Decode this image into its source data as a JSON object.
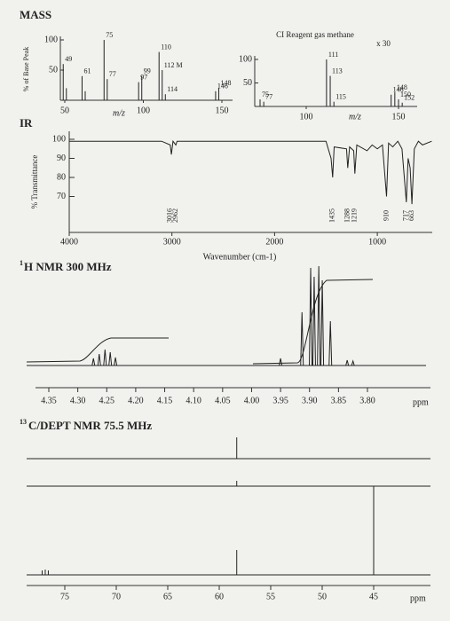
{
  "mass": {
    "title": "MASS",
    "ylabel": "% of Base Peak",
    "xlabel": "m/z",
    "yticks": [
      100,
      50
    ],
    "xticks": [
      50,
      100,
      150
    ],
    "peaks": [
      {
        "mz": 49,
        "intensity": 60,
        "label": "49"
      },
      {
        "mz": 51,
        "intensity": 20
      },
      {
        "mz": 61,
        "intensity": 40,
        "label": "61"
      },
      {
        "mz": 63,
        "intensity": 15
      },
      {
        "mz": 75,
        "intensity": 100,
        "label": "75"
      },
      {
        "mz": 77,
        "intensity": 35,
        "label": "77"
      },
      {
        "mz": 97,
        "intensity": 30,
        "label": "97"
      },
      {
        "mz": 99,
        "intensity": 40,
        "label": "99"
      },
      {
        "mz": 110,
        "intensity": 80,
        "label": "110"
      },
      {
        "mz": 112,
        "intensity": 50,
        "label": "112 M"
      },
      {
        "mz": 114,
        "intensity": 10,
        "label": "114"
      },
      {
        "mz": 146,
        "intensity": 15,
        "label": "146"
      },
      {
        "mz": 148,
        "intensity": 20,
        "label": "148"
      }
    ]
  },
  "ci": {
    "title": "CI Reagent gas methane",
    "scale_note": "x 30",
    "xlabel": "m/z",
    "yticks": [
      100,
      50
    ],
    "xticks": [
      100,
      150
    ],
    "peaks": [
      {
        "mz": 75,
        "intensity": 15,
        "label": "75"
      },
      {
        "mz": 77,
        "intensity": 10,
        "label": "77"
      },
      {
        "mz": 111,
        "intensity": 100,
        "label": "111"
      },
      {
        "mz": 113,
        "intensity": 65,
        "label": "113"
      },
      {
        "mz": 115,
        "intensity": 10,
        "label": "115"
      },
      {
        "mz": 146,
        "intensity": 25,
        "label": "146"
      },
      {
        "mz": 148,
        "intensity": 30,
        "label": "148"
      },
      {
        "mz": 150,
        "intensity": 15,
        "label": "150"
      },
      {
        "mz": 152,
        "intensity": 8,
        "label": "152"
      }
    ]
  },
  "ir": {
    "title": "IR",
    "ylabel": "% Transmittance",
    "xlabel": "Wavenumber (cm-1)",
    "yticks": [
      100,
      90,
      80,
      70
    ],
    "xticks": [
      4000,
      3000,
      2000,
      1000
    ],
    "peak_labels": [
      {
        "label": "2962",
        "x": 2962
      },
      {
        "label": "3016",
        "x": 3016
      },
      {
        "label": "1435",
        "x": 1435
      },
      {
        "label": "1288",
        "x": 1288
      },
      {
        "label": "1219",
        "x": 1219
      },
      {
        "label": "910",
        "x": 910
      },
      {
        "label": "717",
        "x": 717
      },
      {
        "label": "663",
        "x": 663
      }
    ],
    "curve": {
      "x": [
        4000,
        3100,
        3016,
        3005,
        2990,
        2962,
        2950,
        2000,
        1500,
        1450,
        1435,
        1420,
        1300,
        1288,
        1270,
        1230,
        1219,
        1200,
        1100,
        1050,
        1000,
        950,
        910,
        890,
        850,
        800,
        760,
        717,
        700,
        680,
        663,
        640,
        600,
        560,
        470
      ],
      "y": [
        99,
        99,
        97,
        92,
        99,
        97,
        99,
        99,
        99,
        90,
        80,
        96,
        95,
        85,
        96,
        94,
        82,
        97,
        94,
        97,
        95,
        97,
        70,
        98,
        96,
        99,
        95,
        67,
        90,
        85,
        66,
        95,
        99,
        97,
        99
      ]
    }
  },
  "h_nmr": {
    "isotope": "1",
    "title": "H NMR 300 MHz",
    "xlabel": "ppm",
    "xticks": [
      {
        "value": 4.35,
        "label": "4.35"
      },
      {
        "value": 4.3,
        "label": "4.30"
      },
      {
        "value": 4.25,
        "label": "4.25"
      },
      {
        "value": 4.2,
        "label": "4.20"
      },
      {
        "value": 4.15,
        "label": "4.15"
      },
      {
        "value": 4.1,
        "label": "4.10"
      },
      {
        "value": 4.05,
        "label": "4.05"
      },
      {
        "value": 4,
        "label": "4.00"
      },
      {
        "value": 3.95,
        "label": "3.95"
      },
      {
        "value": 3.9,
        "label": "3.90"
      },
      {
        "value": 3.85,
        "label": "3.85"
      },
      {
        "value": 3.8,
        "label": "3.80"
      }
    ],
    "peaks": [
      {
        "ppm": 4.273,
        "intensity": 8
      },
      {
        "ppm": 4.263,
        "intensity": 13
      },
      {
        "ppm": 4.253,
        "intensity": 18
      },
      {
        "ppm": 4.244,
        "intensity": 15
      },
      {
        "ppm": 4.235,
        "intensity": 9
      },
      {
        "ppm": 3.95,
        "intensity": 8
      },
      {
        "ppm": 3.913,
        "intensity": 60
      },
      {
        "ppm": 3.898,
        "intensity": 110
      },
      {
        "ppm": 3.892,
        "intensity": 100
      },
      {
        "ppm": 3.884,
        "intensity": 112
      },
      {
        "ppm": 3.878,
        "intensity": 96
      },
      {
        "ppm": 3.864,
        "intensity": 50
      },
      {
        "ppm": 3.835,
        "intensity": 6
      },
      {
        "ppm": 3.825,
        "intensity": 5
      }
    ]
  },
  "c_nmr": {
    "isotope": "13",
    "title": "C/DEPT NMR 75.5 MHz",
    "xlabel": "ppm",
    "xticks": [
      75,
      70,
      65,
      60,
      55,
      50,
      45
    ],
    "traces": [
      {
        "peaks": [
          {
            "ppm": 58.3,
            "intensity": 24
          }
        ]
      },
      {
        "peaks": [
          {
            "ppm": 58.3,
            "intensity": 6
          }
        ]
      },
      {
        "peaks": [
          {
            "ppm": 58.3,
            "intensity": 28
          },
          {
            "ppm": 45,
            "intensity": 100
          },
          {
            "ppm": 77.2,
            "intensity": 5
          },
          {
            "ppm": 76.9,
            "intensity": 6
          },
          {
            "ppm": 76.6,
            "intensity": 5
          }
        ]
      }
    ]
  }
}
